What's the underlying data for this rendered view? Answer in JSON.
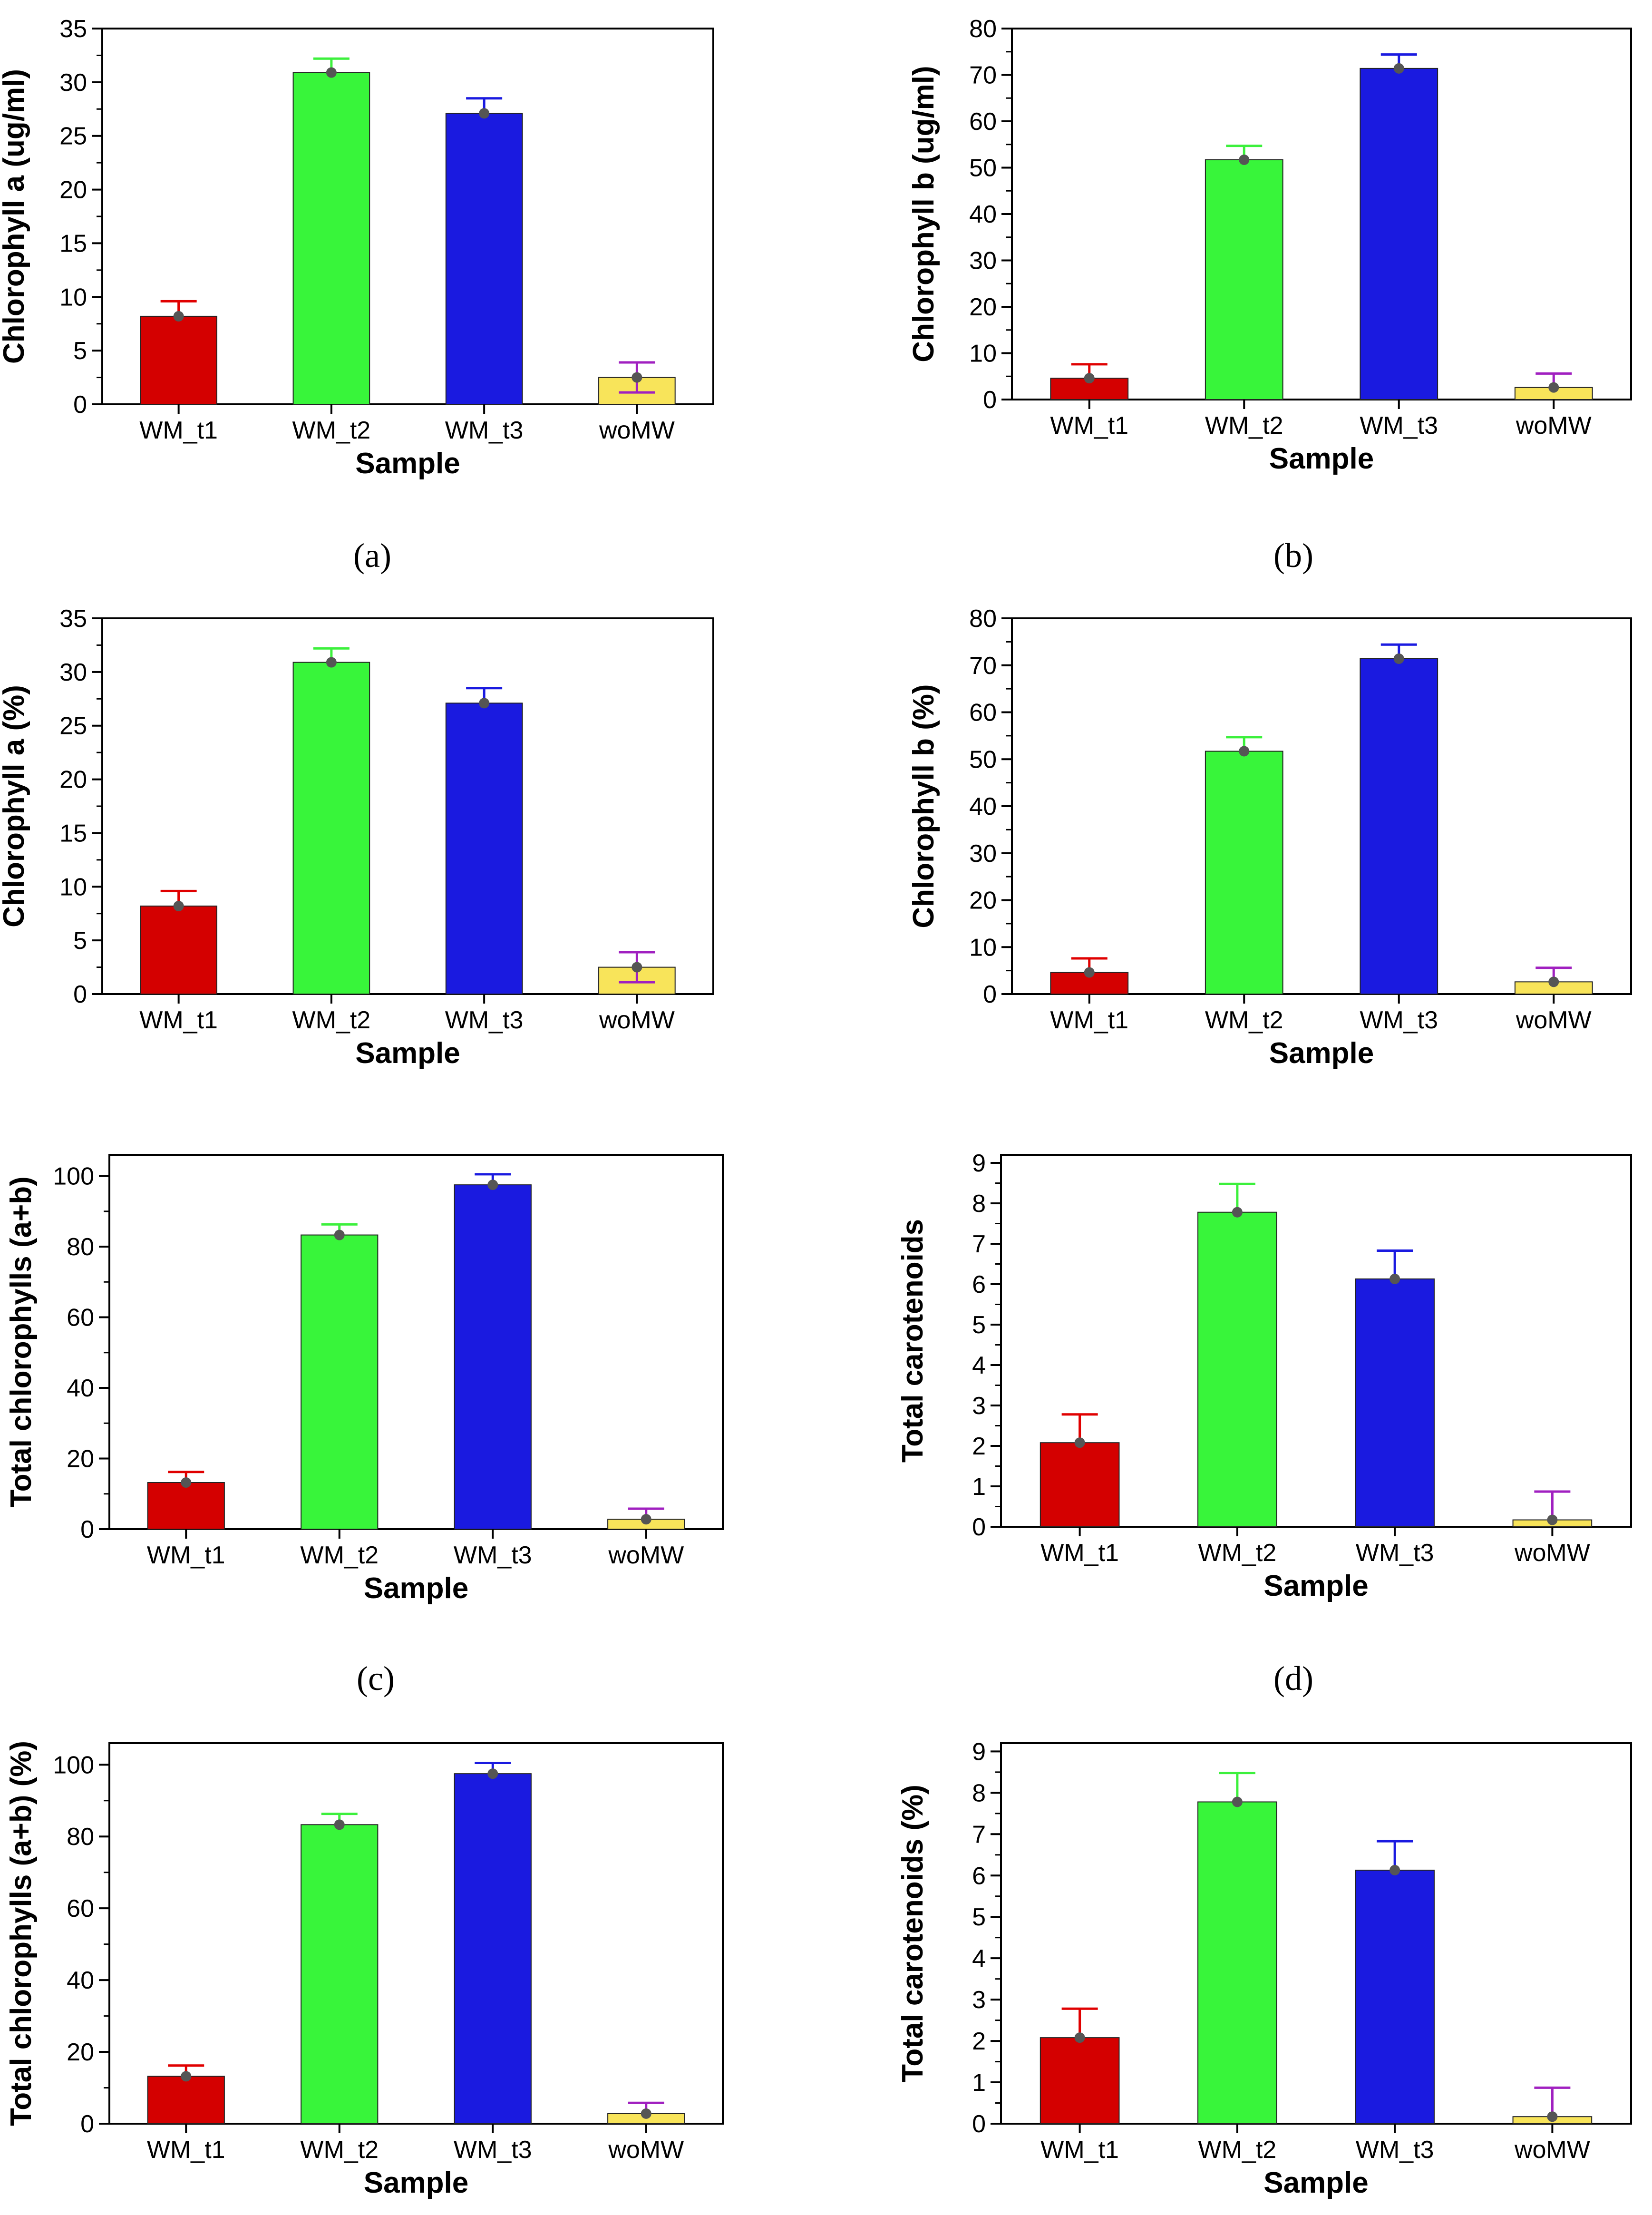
{
  "chart_data": [
    {
      "type": "bar",
      "panel": "(a)",
      "categories": [
        "WM_t1",
        "WM_t2",
        "WM_t3",
        "woMW"
      ],
      "values": [
        8.2,
        30.9,
        27.1,
        2.5
      ],
      "error_upper": [
        9.6,
        32.2,
        28.5,
        3.9
      ],
      "error_lower": [
        8.2,
        30.9,
        27.1,
        1.1
      ],
      "xlabel": "Sample",
      "ylabel": "Chlorophyll a (ug/ml)",
      "ylim": [
        0,
        35
      ],
      "yticks": [
        0,
        5,
        10,
        15,
        20,
        25,
        30,
        35
      ]
    },
    {
      "type": "bar",
      "panel": "(b)",
      "categories": [
        "WM_t1",
        "WM_t2",
        "WM_t3",
        "woMW"
      ],
      "values": [
        4.6,
        51.7,
        71.4,
        2.6
      ],
      "error_upper": [
        7.6,
        54.7,
        74.4,
        5.6
      ],
      "error_lower": [
        4.6,
        51.7,
        71.4,
        2.6
      ],
      "xlabel": "Sample",
      "ylabel": "Chlorophyll b (ug/ml)",
      "ylim": [
        0,
        80
      ],
      "yticks": [
        0,
        10,
        20,
        30,
        40,
        50,
        60,
        70,
        80
      ]
    },
    {
      "type": "bar",
      "panel": "",
      "categories": [
        "WM_t1",
        "WM_t2",
        "WM_t3",
        "woMW"
      ],
      "values": [
        8.2,
        30.9,
        27.1,
        2.5
      ],
      "error_upper": [
        9.6,
        32.2,
        28.5,
        3.9
      ],
      "error_lower": [
        8.2,
        30.9,
        27.1,
        1.1
      ],
      "xlabel": "Sample",
      "ylabel": "Chlorophyll a (%)",
      "ylim": [
        0,
        35
      ],
      "yticks": [
        0,
        5,
        10,
        15,
        20,
        25,
        30,
        35
      ]
    },
    {
      "type": "bar",
      "panel": "",
      "categories": [
        "WM_t1",
        "WM_t2",
        "WM_t3",
        "woMW"
      ],
      "values": [
        4.6,
        51.7,
        71.4,
        2.6
      ],
      "error_upper": [
        7.6,
        54.7,
        74.4,
        5.6
      ],
      "error_lower": [
        4.6,
        51.7,
        71.4,
        2.6
      ],
      "xlabel": "Sample",
      "ylabel": "Chlorophyll b (%)",
      "ylim": [
        0,
        80
      ],
      "yticks": [
        0,
        10,
        20,
        30,
        40,
        50,
        60,
        70,
        80
      ]
    },
    {
      "type": "bar",
      "panel": "(c)",
      "categories": [
        "WM_t1",
        "WM_t2",
        "WM_t3",
        "woMW"
      ],
      "values": [
        13.2,
        83.3,
        97.5,
        2.8
      ],
      "error_upper": [
        16.2,
        86.3,
        100.5,
        5.8
      ],
      "error_lower": [
        13.2,
        83.3,
        97.5,
        2.8
      ],
      "xlabel": "Sample",
      "ylabel": "Total chlorophylls (a+b)",
      "ylim": [
        0,
        106
      ],
      "yticks": [
        0,
        20,
        40,
        60,
        80,
        100
      ]
    },
    {
      "type": "bar",
      "panel": "(d)",
      "categories": [
        "WM_t1",
        "WM_t2",
        "WM_t3",
        "woMW"
      ],
      "values": [
        2.08,
        7.78,
        6.13,
        0.17
      ],
      "error_upper": [
        2.78,
        8.48,
        6.83,
        0.87
      ],
      "error_lower": [
        2.08,
        7.78,
        6.13,
        0.17
      ],
      "xlabel": "Sample",
      "ylabel": "Total carotenoids",
      "ylim": [
        0,
        9.2
      ],
      "yticks": [
        0,
        1,
        2,
        3,
        4,
        5,
        6,
        7,
        8,
        9
      ]
    },
    {
      "type": "bar",
      "panel": "",
      "categories": [
        "WM_t1",
        "WM_t2",
        "WM_t3",
        "woMW"
      ],
      "values": [
        13.2,
        83.3,
        97.5,
        2.8
      ],
      "error_upper": [
        16.2,
        86.3,
        100.5,
        5.8
      ],
      "error_lower": [
        13.2,
        83.3,
        97.5,
        2.8
      ],
      "xlabel": "Sample",
      "ylabel": "Total chlorophylls (a+b) (%)",
      "ylim": [
        0,
        106
      ],
      "yticks": [
        0,
        20,
        40,
        60,
        80,
        100
      ]
    },
    {
      "type": "bar",
      "panel": "",
      "categories": [
        "WM_t1",
        "WM_t2",
        "WM_t3",
        "woMW"
      ],
      "values": [
        2.08,
        7.78,
        6.13,
        0.17
      ],
      "error_upper": [
        2.78,
        8.48,
        6.83,
        0.87
      ],
      "error_lower": [
        2.08,
        7.78,
        6.13,
        0.17
      ],
      "xlabel": "Sample",
      "ylabel": "Total carotenoids (%)",
      "ylim": [
        0,
        9.2
      ],
      "yticks": [
        0,
        1,
        2,
        3,
        4,
        5,
        6,
        7,
        8,
        9
      ]
    }
  ],
  "colors": {
    "bar_fills": [
      "#d40000",
      "#38f53a",
      "#1a1ae0",
      "#f8e45a"
    ],
    "error_bars": [
      "#e00000",
      "#3cf03c",
      "#1a1ae0",
      "#a020c0"
    ],
    "mean_marker": "#555555"
  }
}
